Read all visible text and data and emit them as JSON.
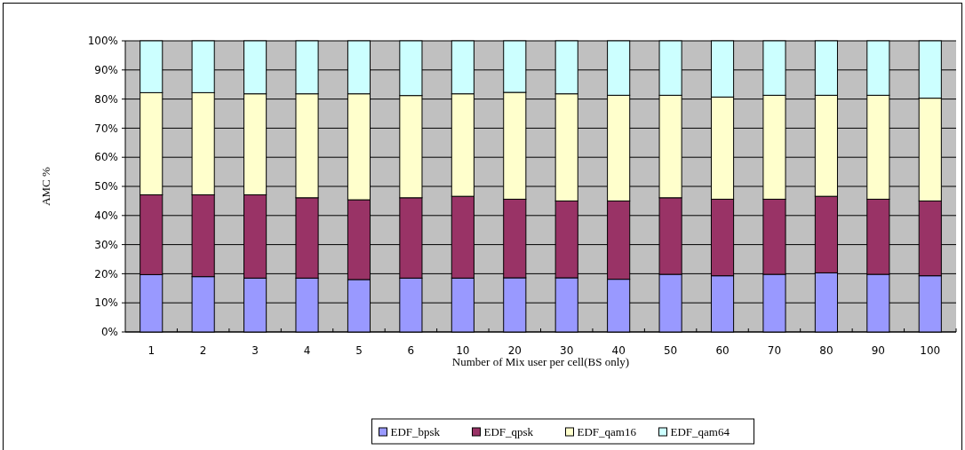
{
  "chart_data": {
    "type": "bar",
    "stacked": true,
    "xlabel": "Number of Mix user per cell(BS only)",
    "ylabel": "AMC %",
    "categories": [
      "1",
      "2",
      "3",
      "4",
      "5",
      "6",
      "10",
      "20",
      "30",
      "40",
      "50",
      "60",
      "70",
      "80",
      "90",
      "100"
    ],
    "series": [
      {
        "name": "EDF_bpsk",
        "color": "#9999ff",
        "values": [
          19.7,
          19.0,
          18.5,
          18.5,
          18.0,
          18.5,
          18.5,
          18.6,
          18.6,
          18.1,
          19.8,
          19.3,
          19.8,
          20.3,
          19.8,
          19.3
        ]
      },
      {
        "name": "EDF_qpsk",
        "color": "#993366",
        "values": [
          27.4,
          28.1,
          28.6,
          27.6,
          27.4,
          27.6,
          28.1,
          27.0,
          26.4,
          26.9,
          26.3,
          26.3,
          25.8,
          26.3,
          25.8,
          25.7
        ]
      },
      {
        "name": "EDF_qam16",
        "color": "#ffffcc",
        "values": [
          35.1,
          35.1,
          34.7,
          35.7,
          36.4,
          35.1,
          35.2,
          36.7,
          36.8,
          36.3,
          35.2,
          35.1,
          35.7,
          34.7,
          35.7,
          35.3
        ]
      },
      {
        "name": "EDF_qam64",
        "color": "#ccffff",
        "values": [
          17.8,
          17.8,
          18.2,
          18.2,
          18.2,
          18.8,
          18.2,
          17.7,
          18.2,
          18.7,
          18.7,
          19.3,
          18.7,
          18.7,
          18.7,
          19.7
        ]
      }
    ],
    "ylim": [
      0,
      100
    ],
    "yticks": [
      {
        "value": 0,
        "label": "0%"
      },
      {
        "value": 10,
        "label": "10%"
      },
      {
        "value": 20,
        "label": "20%"
      },
      {
        "value": 30,
        "label": "30%"
      },
      {
        "value": 40,
        "label": "40%"
      },
      {
        "value": 50,
        "label": "50%"
      },
      {
        "value": 60,
        "label": "60%"
      },
      {
        "value": 70,
        "label": "70%"
      },
      {
        "value": 80,
        "label": "80%"
      },
      {
        "value": 90,
        "label": "90%"
      },
      {
        "value": 100,
        "label": "100%"
      }
    ],
    "grid": "y",
    "legend": "bottom"
  }
}
